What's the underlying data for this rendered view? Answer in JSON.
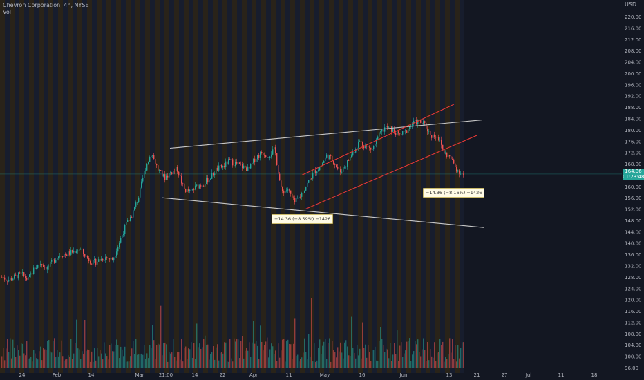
{
  "header": {
    "title": "Chevron Corporation, 4h, NYSE",
    "indicator": "Vol",
    "currency": "USD"
  },
  "price_badge": {
    "price": "164.36",
    "countdown": "01:23:48"
  },
  "annotations": [
    {
      "text": "−14.36 (−8.59%) −1426"
    },
    {
      "text": "−14.36 (−8.16%) −1426"
    }
  ],
  "colors": {
    "background": "#131722",
    "up": "#26a69a",
    "down": "#ef5350",
    "trendline": "#c8c8c8",
    "channel": "#e53935",
    "session_stripe": "#3d2e12",
    "rest_stripe": "#1b2336"
  },
  "chart_data": {
    "type": "candlestick",
    "y_ticks": [
      "220.00",
      "216.00",
      "212.00",
      "208.00",
      "204.00",
      "200.00",
      "196.00",
      "192.00",
      "188.00",
      "184.00",
      "180.00",
      "176.00",
      "172.00",
      "168.00",
      "164.00",
      "160.00",
      "156.00",
      "152.00",
      "148.00",
      "144.00",
      "140.00",
      "136.00",
      "132.00",
      "128.00",
      "124.00",
      "120.00",
      "116.00",
      "112.00",
      "108.00",
      "104.00",
      "100.00",
      "96.00"
    ],
    "x_ticks": [
      "24",
      "Feb",
      "14",
      "Mar",
      "21:00",
      "14",
      "22",
      "Apr",
      "11",
      "May",
      "16",
      "Jun",
      "13",
      "21",
      "27",
      "Jul",
      "11",
      "18"
    ],
    "ohlc_path": [
      128,
      127,
      128,
      129,
      127,
      131,
      133,
      131,
      134,
      136,
      136,
      137,
      138,
      135,
      133,
      134,
      135,
      134,
      140,
      146,
      150,
      156,
      166,
      172,
      166,
      163,
      165,
      166,
      159,
      158,
      160,
      161,
      163,
      166,
      167,
      169,
      168,
      167,
      166,
      170,
      172,
      171,
      173,
      158,
      159,
      154,
      157,
      161,
      165,
      167,
      171,
      169,
      165,
      168,
      172,
      176,
      174,
      173,
      178,
      181,
      180,
      178,
      179,
      182,
      183,
      182,
      178,
      178,
      172,
      170,
      166,
      164
    ],
    "last_price": 164.36,
    "trendlines": [
      {
        "name": "upper-wedge",
        "from": {
          "x": "Mar",
          "y": 173.5
        },
        "to": {
          "x": "21",
          "y": 183.5
        }
      },
      {
        "name": "lower-wedge",
        "from": {
          "x": "Mar",
          "y": 156.0
        },
        "to": {
          "x": "21",
          "y": 145.5
        }
      },
      {
        "name": "channel-top",
        "from": {
          "x": "Apr 11",
          "y": 164
        },
        "to": {
          "x": "Jun 13",
          "y": 189
        }
      },
      {
        "name": "channel-bottom",
        "from": {
          "x": "Apr 11",
          "y": 152
        },
        "to": {
          "x": "Jun 21",
          "y": 178
        }
      }
    ]
  }
}
